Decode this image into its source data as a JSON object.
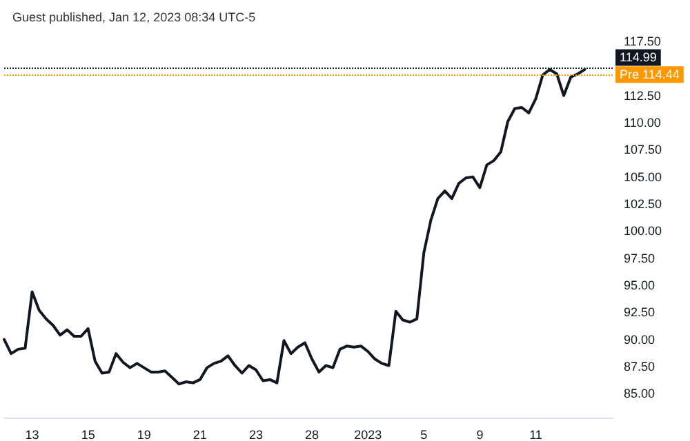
{
  "chart_data": {
    "type": "line",
    "title": "Guest published, Jan 12, 2023 08:34 UTC-5",
    "categories": [
      null,
      null,
      null,
      null,
      "13",
      null,
      null,
      null,
      null,
      null,
      null,
      null,
      "15",
      null,
      null,
      null,
      null,
      null,
      null,
      null,
      "19",
      null,
      null,
      null,
      null,
      null,
      null,
      null,
      "21",
      null,
      null,
      null,
      null,
      null,
      null,
      null,
      "23",
      null,
      null,
      null,
      null,
      null,
      null,
      null,
      "28",
      null,
      null,
      null,
      null,
      null,
      null,
      null,
      "2023",
      null,
      null,
      null,
      null,
      null,
      null,
      null,
      "5",
      null,
      null,
      null,
      null,
      null,
      null,
      null,
      "9",
      null,
      null,
      null,
      null,
      null,
      null,
      null,
      "11",
      null,
      null,
      null,
      null,
      null,
      null,
      null,
      null,
      null,
      null,
      null
    ],
    "series": [
      {
        "color": "#131722",
        "values": [
          90.0,
          88.7,
          89.1,
          89.2,
          94.4,
          92.7,
          91.9,
          91.3,
          90.4,
          90.9,
          90.3,
          90.3,
          91.0,
          88.0,
          86.9,
          87.0,
          88.7,
          87.9,
          87.4,
          87.8,
          87.4,
          87.0,
          87.0,
          87.1,
          86.5,
          85.9,
          86.1,
          86.0,
          86.3,
          87.4,
          87.8,
          88.0,
          88.5,
          87.6,
          86.9,
          87.6,
          87.2,
          86.2,
          86.3,
          86.0,
          89.9,
          88.7,
          89.3,
          89.7,
          88.2,
          87.0,
          87.6,
          87.4,
          89.1,
          89.4,
          89.3,
          89.4,
          88.9,
          88.2,
          87.8,
          87.6,
          92.6,
          91.8,
          91.6,
          91.9,
          98.0,
          101.0,
          103.0,
          103.7,
          103.0,
          104.4,
          104.9,
          105.0,
          104.0,
          106.1,
          106.5,
          107.3,
          110.1,
          111.3,
          111.4,
          110.9,
          112.2,
          114.4,
          114.9,
          114.5,
          112.5,
          114.2,
          114.5,
          114.9,
          null,
          null,
          null,
          null
        ]
      }
    ],
    "ylim": [
      82.8,
      117.5
    ],
    "yticks": [
      {
        "value": 85,
        "label": "85.00"
      },
      {
        "value": 87.5,
        "label": "87.50"
      },
      {
        "value": 90,
        "label": "90.00"
      },
      {
        "value": 92.5,
        "label": "92.50"
      },
      {
        "value": 95,
        "label": "95.00"
      },
      {
        "value": 97.5,
        "label": "97.50"
      },
      {
        "value": 100,
        "label": "100.00"
      },
      {
        "value": 102.5,
        "label": "102.50"
      },
      {
        "value": 105,
        "label": "105.00"
      },
      {
        "value": 107.5,
        "label": "107.50"
      },
      {
        "value": 110,
        "label": "110.00"
      },
      {
        "value": 112.5,
        "label": "112.50"
      },
      {
        "value": 117.5,
        "label": "117.50"
      }
    ],
    "ref_lines": [
      {
        "axis": "y",
        "value": 114.99,
        "label": "114.99",
        "color": "#131722",
        "line_style": "dotted"
      },
      {
        "axis": "y",
        "value": 114.44,
        "label": "Pre 114.44",
        "color": "#ff9800",
        "line_style": "dotted"
      }
    ],
    "grid": false,
    "marker": "none",
    "line_style": "solid"
  }
}
